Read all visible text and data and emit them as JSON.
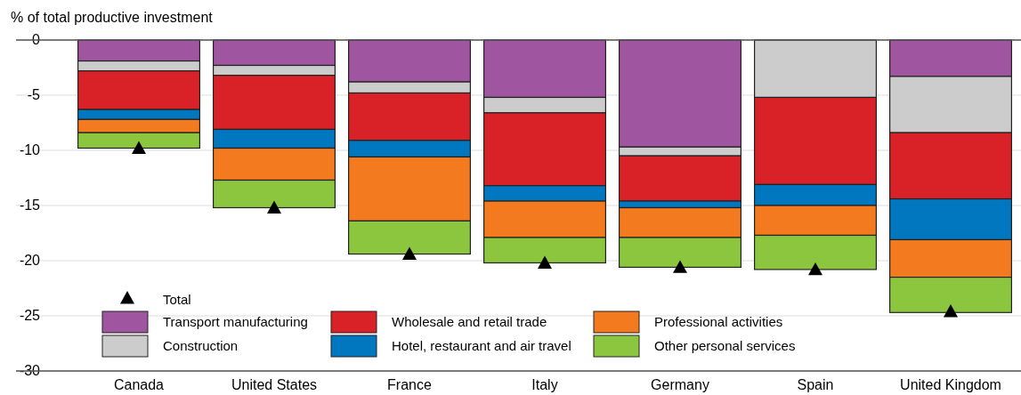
{
  "chart_data": {
    "type": "bar",
    "stacked": true,
    "ylabel": "% of total productive investment",
    "categories": [
      "Canada",
      "United States",
      "France",
      "Italy",
      "Germany",
      "Spain",
      "United Kingdom"
    ],
    "series": [
      {
        "name": "Transport manufacturing",
        "color": "#a055a0",
        "values": [
          -1.9,
          -2.3,
          -3.8,
          -5.2,
          -9.7,
          0,
          -3.3
        ]
      },
      {
        "name": "Construction",
        "color": "#cccccc",
        "values": [
          -0.9,
          -0.9,
          -1.0,
          -1.4,
          -0.8,
          -5.2,
          -5.1
        ]
      },
      {
        "name": "Wholesale and retail trade",
        "color": "#d92128",
        "values": [
          -3.5,
          -4.9,
          -4.3,
          -6.6,
          -4.1,
          -7.9,
          -6.0
        ]
      },
      {
        "name": "Hotel, restaurant and air travel",
        "color": "#0077be",
        "values": [
          -0.9,
          -1.7,
          -1.5,
          -1.4,
          -0.6,
          -1.9,
          -3.7
        ]
      },
      {
        "name": "Professional activities",
        "color": "#f47a20",
        "values": [
          -1.2,
          -2.9,
          -5.8,
          -3.3,
          -2.7,
          -2.7,
          -3.4
        ]
      },
      {
        "name": "Other personal services",
        "color": "#8cc63f",
        "values": [
          -1.4,
          -2.5,
          -3.0,
          -2.3,
          -2.7,
          -3.1,
          -3.2
        ]
      },
      {
        "name": "Total",
        "type": "scatter",
        "marker": "triangle",
        "color": "#000000",
        "x": [
          "Canada",
          "United States",
          "France",
          "Italy",
          "Germany",
          "Spain",
          "United Kingdom"
        ],
        "values": [
          -9.8,
          -15.2,
          -19.4,
          -20.2,
          -20.6,
          -20.8,
          -24.6
        ]
      }
    ],
    "ylim": [
      -30,
      0
    ],
    "yticks": [
      -30,
      -25,
      -20,
      -15,
      -10,
      -5,
      0
    ],
    "grid": "y",
    "legend": "bottom"
  }
}
